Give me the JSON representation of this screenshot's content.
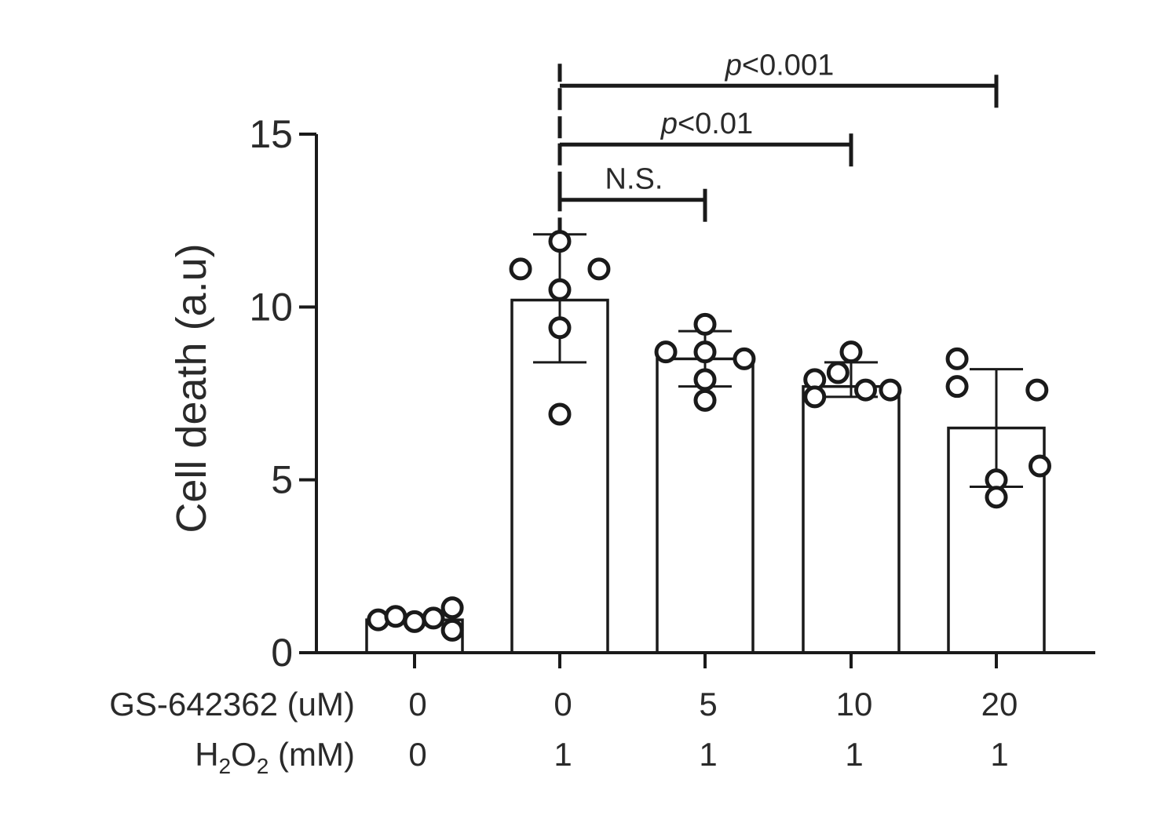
{
  "chart_data": {
    "type": "bar",
    "ylabel": "Cell death (a.u)",
    "ylim": [
      0,
      15
    ],
    "yticks": [
      "0",
      "5",
      "10",
      "15"
    ],
    "row_labels": [
      {
        "prefix": "GS-642362 (uM)",
        "main": "",
        "sub1": "",
        "mid": "",
        "sub2": "",
        "suffix": ""
      },
      {
        "prefix": "",
        "main": "H",
        "sub1": "2",
        "mid": "O",
        "sub2": "2",
        "suffix": " (mM)"
      }
    ],
    "categories": [
      {
        "gs": "0",
        "h2o2": "0"
      },
      {
        "gs": "0",
        "h2o2": "1"
      },
      {
        "gs": "5",
        "h2o2": "1"
      },
      {
        "gs": "10",
        "h2o2": "1"
      },
      {
        "gs": "20",
        "h2o2": "1"
      }
    ],
    "values": [
      0.95,
      10.2,
      8.5,
      7.7,
      6.5
    ],
    "error_bars": [
      null,
      [
        8.4,
        12.1
      ],
      [
        7.7,
        9.3
      ],
      [
        7.4,
        8.4
      ],
      [
        4.8,
        8.2
      ]
    ],
    "points": [
      [
        [
          -0.25,
          0.95
        ],
        [
          -0.13,
          1.05
        ],
        [
          0.0,
          0.9
        ],
        [
          0.13,
          1.0
        ],
        [
          0.26,
          1.3
        ],
        [
          0.26,
          0.65
        ]
      ],
      [
        [
          -0.27,
          11.1
        ],
        [
          0.0,
          11.9
        ],
        [
          0.27,
          11.1
        ],
        [
          0.0,
          10.5
        ],
        [
          0.0,
          9.4
        ],
        [
          0.0,
          6.9
        ]
      ],
      [
        [
          -0.27,
          8.7
        ],
        [
          0.0,
          9.5
        ],
        [
          0.0,
          8.7
        ],
        [
          0.27,
          8.5
        ],
        [
          0.0,
          7.9
        ],
        [
          0.0,
          7.3
        ]
      ],
      [
        [
          -0.25,
          7.9
        ],
        [
          -0.25,
          7.4
        ],
        [
          -0.09,
          8.1
        ],
        [
          0.0,
          8.7
        ],
        [
          0.1,
          7.6
        ],
        [
          0.27,
          7.6
        ]
      ],
      [
        [
          -0.27,
          8.5
        ],
        [
          -0.27,
          7.7
        ],
        [
          0.28,
          7.6
        ],
        [
          0.0,
          5.0
        ],
        [
          0.0,
          4.5
        ],
        [
          0.3,
          5.4
        ]
      ]
    ],
    "comparisons": [
      {
        "from": 1,
        "to": 2,
        "label": "N.S.",
        "italic_p": false,
        "y": 13.1
      },
      {
        "from": 1,
        "to": 3,
        "label": "<0.01",
        "italic_p": true,
        "y": 14.7
      },
      {
        "from": 1,
        "to": 4,
        "label": "<0.001",
        "italic_p": true,
        "y": 16.4
      }
    ],
    "colors": {
      "stroke": "#1a1a1a",
      "fill": "#ffffff",
      "text": "#2a2a2a"
    }
  }
}
